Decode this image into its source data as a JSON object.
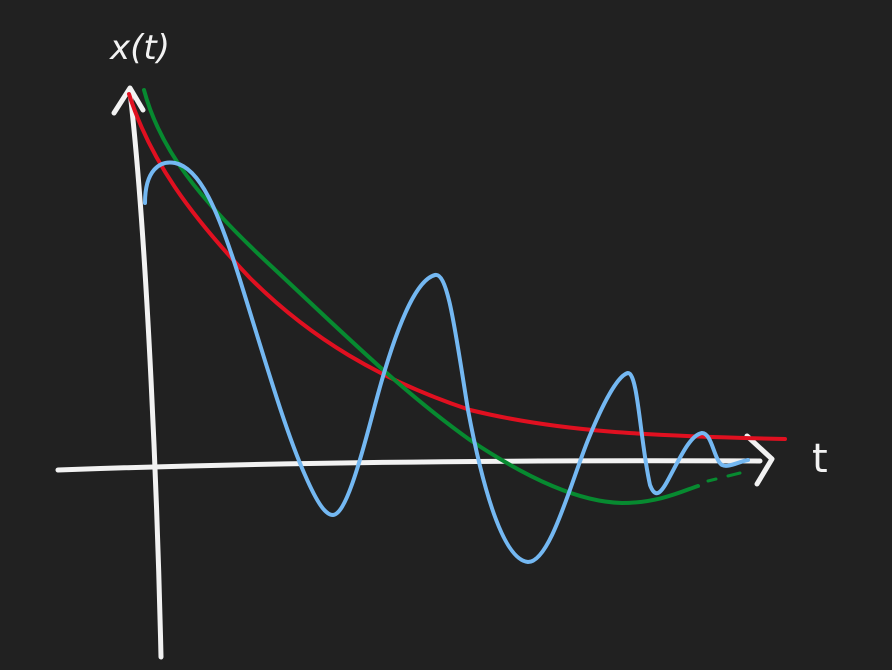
{
  "diagram": {
    "y_axis_label": "x(t)",
    "x_axis_label": "t",
    "background": "#212121",
    "colors": {
      "axes": "#f2f2f2",
      "red_curve": "#e01020",
      "green_curve": "#078a30",
      "blue_curve": "#74b8f2"
    }
  }
}
